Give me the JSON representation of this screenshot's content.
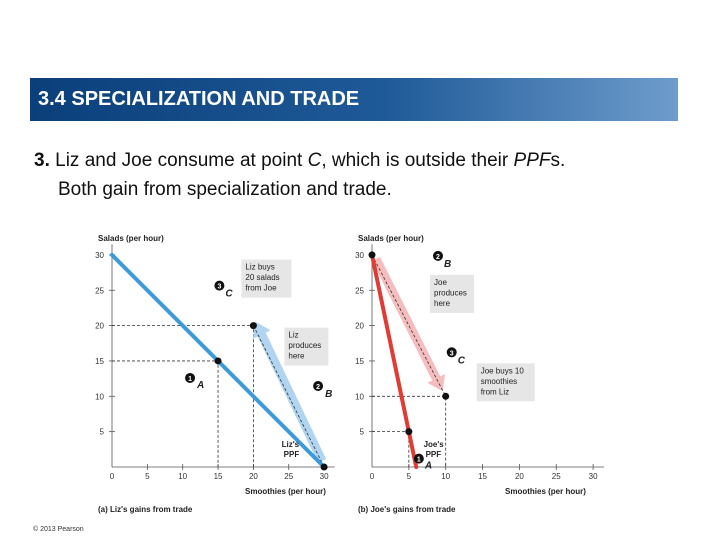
{
  "slide": {
    "title": "3.4  SPECIALIZATION AND TRADE",
    "item_number": "3.",
    "text_pre": " Liz and Joe consume at point ",
    "text_point": "C",
    "text_mid": ", which is outside their ",
    "text_ppf": "PPF",
    "text_s": "s.",
    "text_line2": "Both gain from specialization and trade.",
    "copyright": "© 2013 Pearson"
  },
  "colors": {
    "liz_ppf": "#3d9ad8",
    "joe_ppf": "#e03c35",
    "liz_arrow": "#a8d0ee",
    "joe_arrow": "#f4b6b6",
    "label_box": "#e6e6e6"
  },
  "chart_data": [
    {
      "type": "line",
      "ylabel": "Salads (per hour)",
      "xlabel": "Smoothies (per hour)",
      "caption": "(a) Liz's gains from trade",
      "xlim": [
        0,
        30
      ],
      "ylim": [
        0,
        30
      ],
      "x_ticks": [
        "0",
        "5",
        "10",
        "15",
        "20",
        "25",
        "30"
      ],
      "y_ticks": [
        "5",
        "10",
        "15",
        "20",
        "25",
        "30"
      ],
      "series": [
        {
          "name": "Liz's PPF",
          "x": [
            0,
            30
          ],
          "y": [
            30,
            0
          ]
        }
      ],
      "points": [
        {
          "id": "A",
          "number": "1",
          "x": 15,
          "y": 15
        },
        {
          "id": "B",
          "number": "2",
          "x": 30,
          "y": 0
        },
        {
          "id": "C",
          "number": "3",
          "x": 20,
          "y": 20
        }
      ],
      "annotations": {
        "ppf_label_line1": "Liz's",
        "ppf_label_line2": "PPF",
        "buys": [
          "Liz buys",
          "20 salads",
          "from Joe"
        ],
        "produces": [
          "Liz",
          "produces",
          "here"
        ]
      }
    },
    {
      "type": "line",
      "ylabel": "Salads (per hour)",
      "xlabel": "Smoothies (per hour)",
      "caption": "(b) Joe's gains from trade",
      "xlim": [
        0,
        30
      ],
      "ylim": [
        0,
        30
      ],
      "x_ticks": [
        "0",
        "5",
        "10",
        "15",
        "20",
        "25",
        "30"
      ],
      "y_ticks": [
        "5",
        "10",
        "15",
        "20",
        "25",
        "30"
      ],
      "series": [
        {
          "name": "Joe's PPF",
          "x": [
            0,
            6
          ],
          "y": [
            30,
            0
          ]
        }
      ],
      "points": [
        {
          "id": "A",
          "number": "1",
          "x": 5,
          "y": 5
        },
        {
          "id": "B",
          "number": "2",
          "x": 0,
          "y": 30
        },
        {
          "id": "C",
          "number": "3",
          "x": 10,
          "y": 10
        }
      ],
      "annotations": {
        "ppf_label_line1": "Joe's",
        "ppf_label_line2": "PPF",
        "produces": [
          "Joe",
          "produces",
          "here"
        ],
        "buys": [
          "Joe buys 10",
          "smoothies",
          "from Liz"
        ]
      }
    }
  ]
}
